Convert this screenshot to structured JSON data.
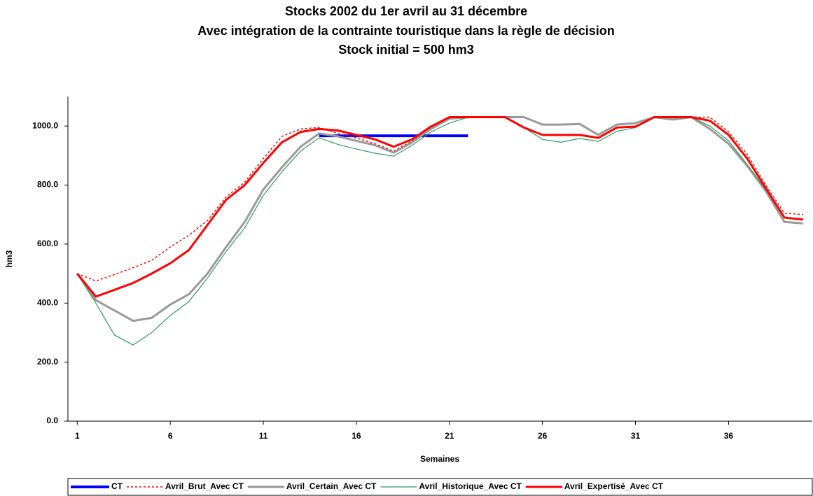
{
  "chart_data": {
    "type": "line",
    "title": [
      "Stocks 2002 du 1er avril au 31 décembre",
      "Avec intégration de la contrainte touristique dans la règle de décision",
      "Stock initial = 500 hm3"
    ],
    "x_label": "Semaines",
    "y_label": "hm3",
    "x": [
      1,
      2,
      3,
      4,
      5,
      6,
      7,
      8,
      9,
      10,
      11,
      12,
      13,
      14,
      15,
      16,
      17,
      18,
      19,
      20,
      21,
      22,
      23,
      24,
      25,
      26,
      27,
      28,
      29,
      30,
      31,
      32,
      33,
      34,
      35,
      36,
      37,
      38,
      39,
      40
    ],
    "xlim": [
      0.5,
      40.5
    ],
    "xticks": [
      1,
      6,
      11,
      16,
      21,
      26,
      31,
      36
    ],
    "ylim": [
      0,
      1100
    ],
    "yticks": [
      {
        "value": 0,
        "label": "0.0"
      },
      {
        "value": 200,
        "label": "200.0"
      },
      {
        "value": 400,
        "label": "400.0"
      },
      {
        "value": 600,
        "label": "600.0"
      },
      {
        "value": 800,
        "label": "800.0"
      },
      {
        "value": 1000,
        "label": "1000.0"
      }
    ],
    "grid": false,
    "legend": "bottom",
    "series": [
      {
        "name": "CT",
        "color": "#0000ff",
        "line_width": 4,
        "style": "solid",
        "values": [
          null,
          null,
          null,
          null,
          null,
          null,
          null,
          null,
          null,
          null,
          null,
          null,
          null,
          967,
          967,
          967,
          967,
          967,
          967,
          967,
          967,
          967,
          null,
          null,
          null,
          null,
          null,
          null,
          null,
          null,
          null,
          null,
          null,
          null,
          null,
          null,
          null,
          null,
          null,
          null
        ]
      },
      {
        "name": "Avril_Brut_Avec CT",
        "color": "#ff0000",
        "line_width": 1.5,
        "style": "dotted",
        "values": [
          500,
          475,
          497,
          520,
          545,
          590,
          630,
          680,
          760,
          810,
          890,
          965,
          990,
          995,
          975,
          960,
          940,
          915,
          950,
          990,
          1030,
          1030,
          1030,
          1030,
          995,
          970,
          970,
          970,
          960,
          995,
          1000,
          1030,
          1030,
          1030,
          1030,
          980,
          905,
          800,
          705,
          700
        ]
      },
      {
        "name": "Avril_Certain_Avec CT",
        "color": "#999999",
        "line_width": 3,
        "style": "solid",
        "values": [
          500,
          410,
          375,
          340,
          350,
          395,
          430,
          500,
          590,
          675,
          785,
          860,
          930,
          975,
          965,
          950,
          935,
          910,
          945,
          990,
          1025,
          1030,
          1030,
          1030,
          1030,
          1005,
          1005,
          1007,
          970,
          1005,
          1010,
          1030,
          1022,
          1030,
          990,
          940,
          865,
          780,
          675,
          670
        ]
      },
      {
        "name": "Avril_Historique_Avec CT",
        "color": "#339966",
        "line_width": 1.2,
        "style": "solid",
        "values": [
          500,
          400,
          292,
          258,
          300,
          358,
          405,
          485,
          575,
          655,
          765,
          845,
          915,
          960,
          938,
          922,
          908,
          898,
          935,
          980,
          1010,
          1030,
          1030,
          1030,
          995,
          955,
          945,
          958,
          948,
          982,
          995,
          1030,
          1030,
          1030,
          1000,
          950,
          870,
          785,
          690,
          685
        ]
      },
      {
        "name": "Avril_Expertisé_Avec CT",
        "color": "#ff0000",
        "line_width": 3,
        "style": "solid",
        "values": [
          500,
          422,
          445,
          468,
          500,
          535,
          580,
          665,
          750,
          800,
          875,
          945,
          980,
          990,
          985,
          970,
          955,
          930,
          955,
          998,
          1030,
          1030,
          1030,
          1030,
          995,
          970,
          970,
          970,
          960,
          995,
          998,
          1030,
          1030,
          1030,
          1018,
          970,
          890,
          790,
          690,
          683
        ]
      }
    ]
  }
}
